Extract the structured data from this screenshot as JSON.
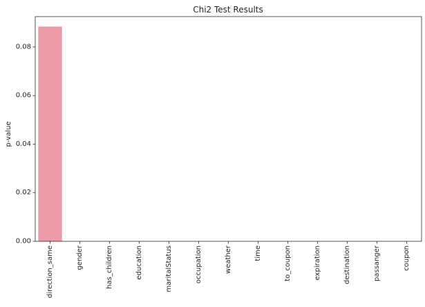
{
  "chart_data": {
    "type": "bar",
    "title": "Chi2 Test Results",
    "xlabel": "",
    "ylabel": "p-value",
    "categories": [
      "direction_same",
      "gender",
      "has_children",
      "education",
      "maritalStatus",
      "occupation",
      "weather",
      "time",
      "to_coupon",
      "expiration",
      "destination",
      "passanger",
      "coupon"
    ],
    "values": [
      0.0884,
      0.0,
      0.0,
      0.0,
      0.0,
      0.0,
      0.0,
      0.0,
      0.0,
      0.0,
      0.0,
      0.0,
      0.0
    ],
    "ylim": [
      0,
      0.0925
    ],
    "yticks": [
      0.0,
      0.02,
      0.04,
      0.06,
      0.08
    ],
    "ytick_labels": [
      "0.00",
      "0.02",
      "0.04",
      "0.06",
      "0.08"
    ],
    "grid": false,
    "legend": "none",
    "bar_color": "#ec9aa6"
  }
}
